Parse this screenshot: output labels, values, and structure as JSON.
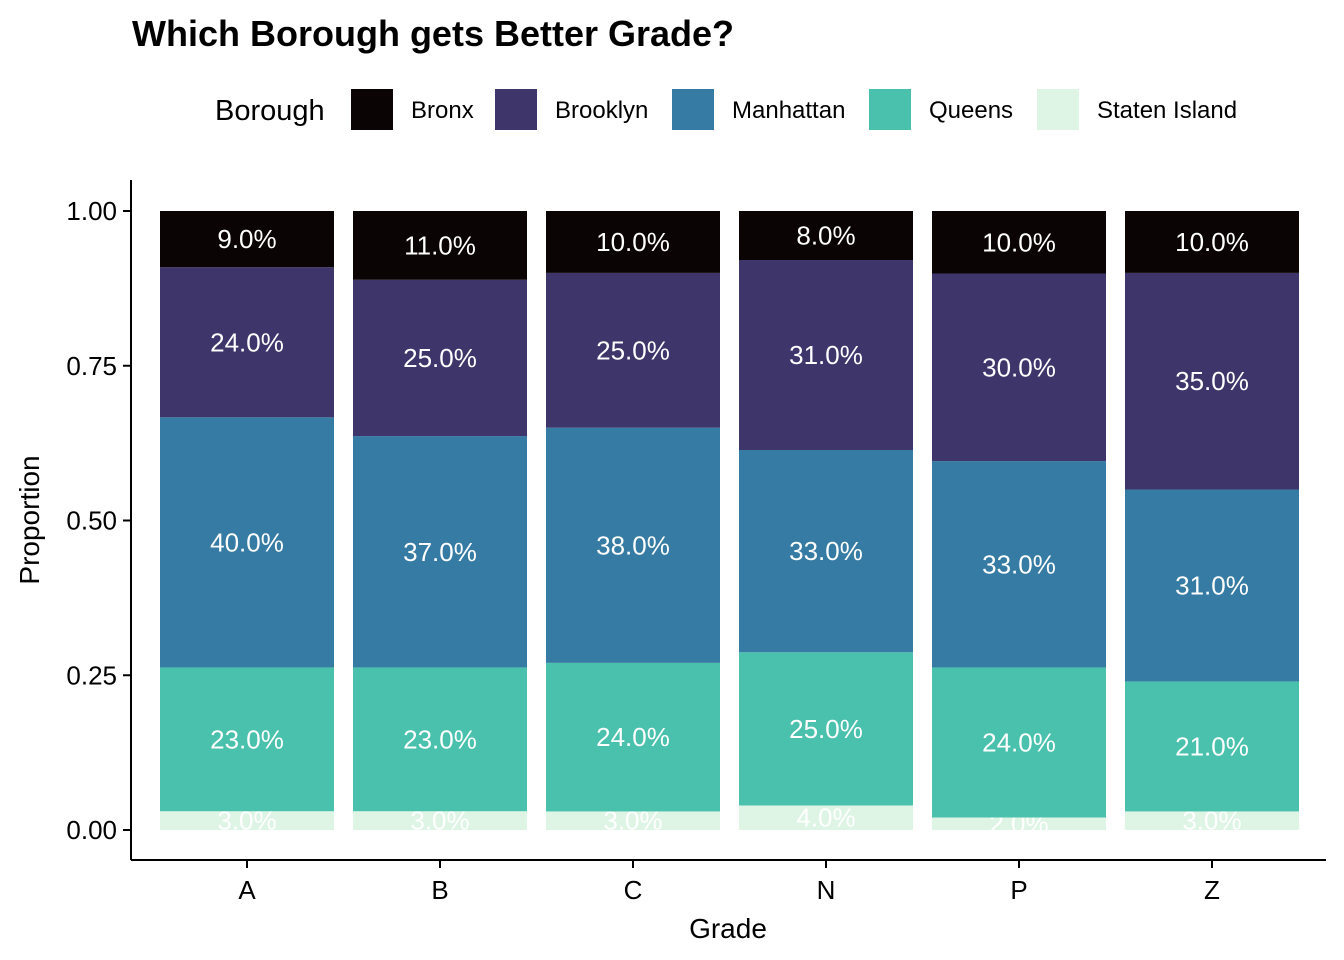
{
  "chart_data": {
    "type": "bar",
    "stacked": true,
    "title": "Which Borough gets Better Grade?",
    "xlabel": "Grade",
    "ylabel": "Proportion",
    "ylim": [
      0,
      1
    ],
    "yticks": [
      "0.00",
      "0.25",
      "0.50",
      "0.75",
      "1.00"
    ],
    "yticks_values": [
      0,
      0.25,
      0.5,
      0.75,
      1.0
    ],
    "categories": [
      "A",
      "B",
      "C",
      "N",
      "P",
      "Z"
    ],
    "legend": {
      "title": "Borough",
      "position": "top"
    },
    "grid": false,
    "series": [
      {
        "name": "Bronx",
        "color": "#0b0405",
        "values": [
          0.09,
          0.11,
          0.1,
          0.08,
          0.1,
          0.1
        ],
        "labels": [
          "9.0%",
          "11.0%",
          "10.0%",
          "8.0%",
          "10.0%",
          "10.0%"
        ]
      },
      {
        "name": "Brooklyn",
        "color": "#3e356b",
        "values": [
          0.24,
          0.25,
          0.25,
          0.31,
          0.3,
          0.35
        ],
        "labels": [
          "24.0%",
          "25.0%",
          "25.0%",
          "31.0%",
          "30.0%",
          "35.0%"
        ]
      },
      {
        "name": "Manhattan",
        "color": "#357ba3",
        "values": [
          0.4,
          0.37,
          0.38,
          0.33,
          0.33,
          0.31
        ],
        "labels": [
          "40.0%",
          "37.0%",
          "38.0%",
          "33.0%",
          "33.0%",
          "31.0%"
        ]
      },
      {
        "name": "Queens",
        "color": "#49c1ad",
        "values": [
          0.23,
          0.23,
          0.24,
          0.25,
          0.24,
          0.21
        ],
        "labels": [
          "23.0%",
          "23.0%",
          "24.0%",
          "25.0%",
          "24.0%",
          "21.0%"
        ]
      },
      {
        "name": "Staten Island",
        "color": "#def5e5",
        "values": [
          0.03,
          0.03,
          0.03,
          0.04,
          0.02,
          0.03
        ],
        "labels": [
          "3.0%",
          "3.0%",
          "3.0%",
          "4.0%",
          "2.0%",
          "3.0%"
        ]
      }
    ]
  }
}
